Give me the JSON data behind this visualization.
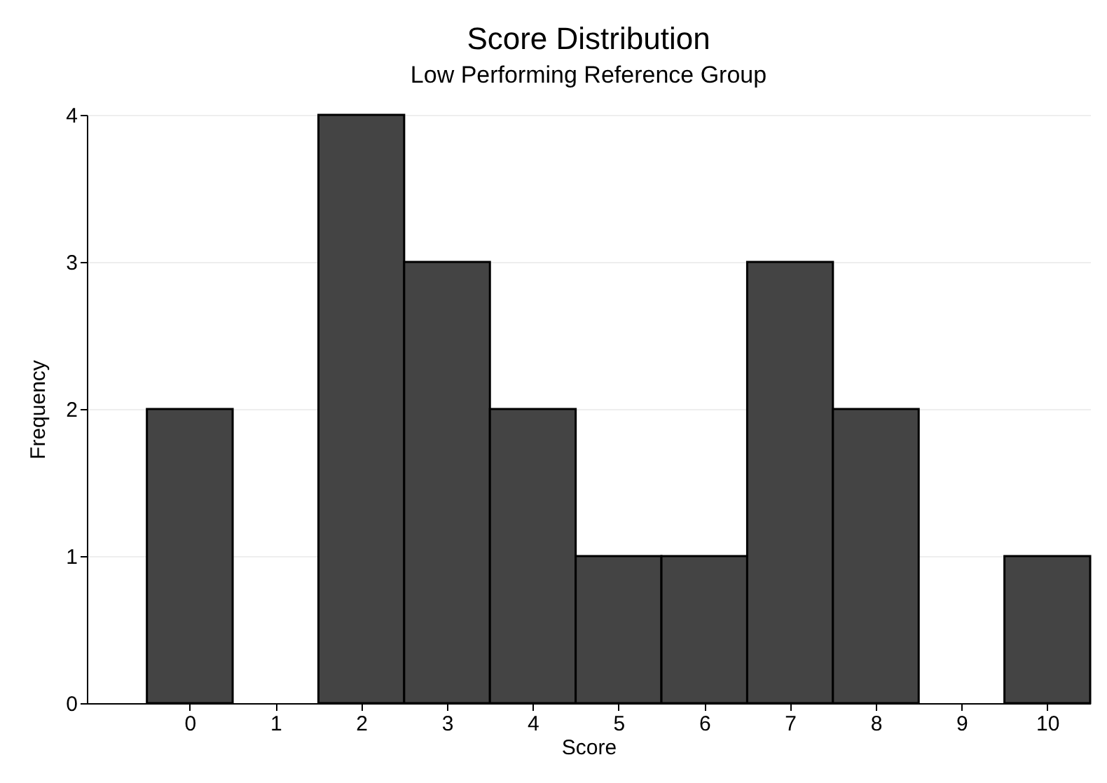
{
  "chart_data": {
    "type": "histogram",
    "title": "Score Distribution",
    "subtitle": "Low Performing Reference Group",
    "xlabel": "Score",
    "ylabel": "Frequency",
    "bins": [
      -0.5,
      0.5,
      1.5,
      2.5,
      3.5,
      4.5,
      5.5,
      6.5,
      7.5,
      8.5,
      9.5,
      10.5
    ],
    "values": [
      2,
      0,
      4,
      3,
      2,
      1,
      1,
      3,
      2,
      0,
      1
    ],
    "color": "#444444",
    "xlim": [
      -1.2,
      10.5
    ],
    "xticks": [
      0,
      1,
      2,
      3,
      4,
      5,
      6,
      7,
      8,
      9,
      10
    ],
    "ylim": [
      0,
      4
    ],
    "yticks": [
      0,
      1,
      2,
      3,
      4
    ],
    "grid": "y"
  }
}
